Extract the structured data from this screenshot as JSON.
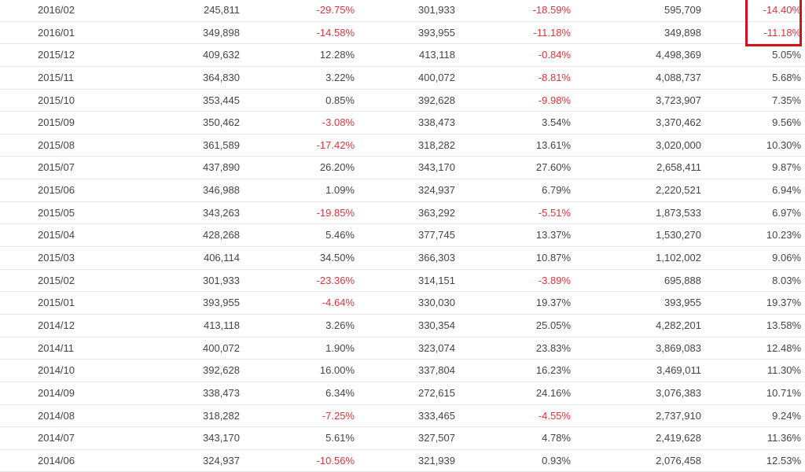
{
  "colors": {
    "negative": "#e2323a",
    "text": "#444444",
    "highlight": "#d0121b",
    "row_border": "#e6e6e6"
  },
  "rows": [
    {
      "period": "2016/02",
      "v1": "245,811",
      "p1": "-29.75%",
      "v2": "301,933",
      "p2": "-18.59%",
      "v3": "595,709",
      "p3": "-14.40%"
    },
    {
      "period": "2016/01",
      "v1": "349,898",
      "p1": "-14.58%",
      "v2": "393,955",
      "p2": "-11.18%",
      "v3": "349,898",
      "p3": "-11.18%"
    },
    {
      "period": "2015/12",
      "v1": "409,632",
      "p1": "12.28%",
      "v2": "413,118",
      "p2": "-0.84%",
      "v3": "4,498,369",
      "p3": "5.05%"
    },
    {
      "period": "2015/11",
      "v1": "364,830",
      "p1": "3.22%",
      "v2": "400,072",
      "p2": "-8.81%",
      "v3": "4,088,737",
      "p3": "5.68%"
    },
    {
      "period": "2015/10",
      "v1": "353,445",
      "p1": "0.85%",
      "v2": "392,628",
      "p2": "-9.98%",
      "v3": "3,723,907",
      "p3": "7.35%"
    },
    {
      "period": "2015/09",
      "v1": "350,462",
      "p1": "-3.08%",
      "v2": "338,473",
      "p2": "3.54%",
      "v3": "3,370,462",
      "p3": "9.56%"
    },
    {
      "period": "2015/08",
      "v1": "361,589",
      "p1": "-17.42%",
      "v2": "318,282",
      "p2": "13.61%",
      "v3": "3,020,000",
      "p3": "10.30%"
    },
    {
      "period": "2015/07",
      "v1": "437,890",
      "p1": "26.20%",
      "v2": "343,170",
      "p2": "27.60%",
      "v3": "2,658,411",
      "p3": "9.87%"
    },
    {
      "period": "2015/06",
      "v1": "346,988",
      "p1": "1.09%",
      "v2": "324,937",
      "p2": "6.79%",
      "v3": "2,220,521",
      "p3": "6.94%"
    },
    {
      "period": "2015/05",
      "v1": "343,263",
      "p1": "-19.85%",
      "v2": "363,292",
      "p2": "-5.51%",
      "v3": "1,873,533",
      "p3": "6.97%"
    },
    {
      "period": "2015/04",
      "v1": "428,268",
      "p1": "5.46%",
      "v2": "377,745",
      "p2": "13.37%",
      "v3": "1,530,270",
      "p3": "10.23%"
    },
    {
      "period": "2015/03",
      "v1": "406,114",
      "p1": "34.50%",
      "v2": "366,303",
      "p2": "10.87%",
      "v3": "1,102,002",
      "p3": "9.06%"
    },
    {
      "period": "2015/02",
      "v1": "301,933",
      "p1": "-23.36%",
      "v2": "314,151",
      "p2": "-3.89%",
      "v3": "695,888",
      "p3": "8.03%"
    },
    {
      "period": "2015/01",
      "v1": "393,955",
      "p1": "-4.64%",
      "v2": "330,030",
      "p2": "19.37%",
      "v3": "393,955",
      "p3": "19.37%"
    },
    {
      "period": "2014/12",
      "v1": "413,118",
      "p1": "3.26%",
      "v2": "330,354",
      "p2": "25.05%",
      "v3": "4,282,201",
      "p3": "13.58%"
    },
    {
      "period": "2014/11",
      "v1": "400,072",
      "p1": "1.90%",
      "v2": "323,074",
      "p2": "23.83%",
      "v3": "3,869,083",
      "p3": "12.48%"
    },
    {
      "period": "2014/10",
      "v1": "392,628",
      "p1": "16.00%",
      "v2": "337,804",
      "p2": "16.23%",
      "v3": "3,469,011",
      "p3": "11.30%"
    },
    {
      "period": "2014/09",
      "v1": "338,473",
      "p1": "6.34%",
      "v2": "272,615",
      "p2": "24.16%",
      "v3": "3,076,383",
      "p3": "10.71%"
    },
    {
      "period": "2014/08",
      "v1": "318,282",
      "p1": "-7.25%",
      "v2": "333,465",
      "p2": "-4.55%",
      "v3": "2,737,910",
      "p3": "9.24%"
    },
    {
      "period": "2014/07",
      "v1": "343,170",
      "p1": "5.61%",
      "v2": "327,507",
      "p2": "4.78%",
      "v3": "2,419,628",
      "p3": "11.36%"
    },
    {
      "period": "2014/06",
      "v1": "324,937",
      "p1": "-10.56%",
      "v2": "321,939",
      "p2": "0.93%",
      "v3": "2,076,458",
      "p3": "12.53%"
    }
  ]
}
